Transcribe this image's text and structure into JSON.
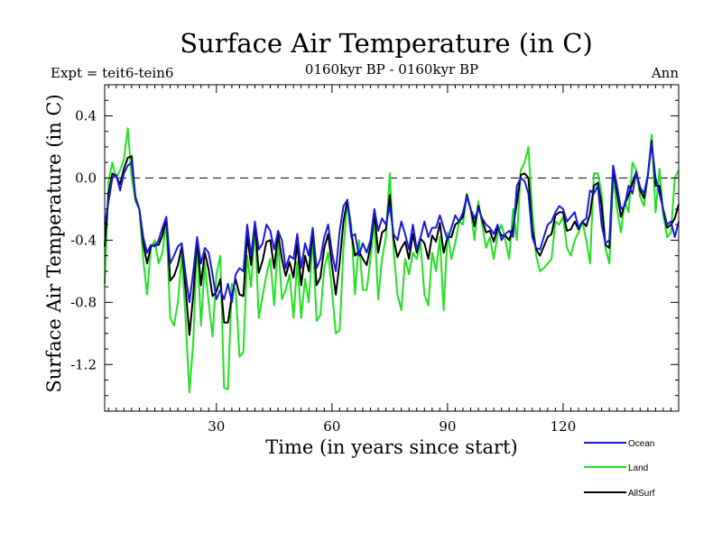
{
  "chart_data": {
    "type": "line",
    "title": "Surface Air Temperature (in C)",
    "subtitle": "0160kyr BP - 0160kyr BP",
    "expt_label": "Expt = teit6-tein6",
    "period_label": "Ann",
    "xlabel": "Time (in years since start)",
    "ylabel": "Surface Air Temperature (in C)",
    "xlim": [
      1,
      150
    ],
    "ylim": [
      -1.5,
      0.6
    ],
    "xticks": [
      30,
      60,
      90,
      120
    ],
    "xtick_labels": [
      "30",
      "60",
      "90",
      "120"
    ],
    "yticks": [
      0.4,
      0.0,
      -0.4,
      -0.8,
      -1.2
    ],
    "ytick_labels": [
      "0.4",
      "0.0",
      "-0.4",
      "-0.8",
      "-1.2"
    ],
    "reference_line": 0.0,
    "legend_position": "bottom-right",
    "series": [
      {
        "name": "Ocean",
        "color": "#1a1adc",
        "values": [
          -0.3,
          -0.15,
          0.0,
          0.02,
          -0.08,
          0.03,
          0.08,
          0.1,
          -0.12,
          -0.2,
          -0.38,
          -0.48,
          -0.43,
          -0.44,
          -0.4,
          -0.32,
          -0.25,
          -0.55,
          -0.5,
          -0.44,
          -0.42,
          -0.62,
          -0.8,
          -0.6,
          -0.38,
          -0.55,
          -0.45,
          -0.48,
          -0.62,
          -0.78,
          -0.72,
          -0.78,
          -0.68,
          -0.8,
          -0.62,
          -0.58,
          -0.6,
          -0.3,
          -0.5,
          -0.28,
          -0.46,
          -0.42,
          -0.3,
          -0.34,
          -0.46,
          -0.34,
          -0.4,
          -0.58,
          -0.5,
          -0.52,
          -0.36,
          -0.58,
          -0.42,
          -0.5,
          -0.32,
          -0.58,
          -0.52,
          -0.38,
          -0.3,
          -0.48,
          -0.6,
          -0.34,
          -0.18,
          -0.14,
          -0.38,
          -0.36,
          -0.5,
          -0.42,
          -0.48,
          -0.4,
          -0.2,
          -0.34,
          -0.26,
          -0.3,
          -0.18,
          -0.36,
          -0.4,
          -0.28,
          -0.36,
          -0.46,
          -0.3,
          -0.46,
          -0.38,
          -0.28,
          -0.38,
          -0.32,
          -0.32,
          -0.24,
          -0.32,
          -0.4,
          -0.32,
          -0.24,
          -0.28,
          -0.22,
          -0.12,
          -0.2,
          -0.26,
          -0.2,
          -0.26,
          -0.3,
          -0.32,
          -0.36,
          -0.3,
          -0.4,
          -0.36,
          -0.34,
          -0.38,
          -0.05,
          0.0,
          -0.02,
          -0.1,
          -0.38,
          -0.45,
          -0.46,
          -0.38,
          -0.3,
          -0.28,
          -0.22,
          -0.18,
          -0.2,
          -0.28,
          -0.25,
          -0.22,
          -0.32,
          -0.28,
          -0.26,
          -0.08,
          -0.1,
          -0.05,
          -0.3,
          -0.42,
          -0.4,
          0.08,
          -0.05,
          -0.2,
          -0.18,
          -0.05,
          -0.1,
          0.04,
          -0.06,
          -0.1,
          0.02,
          0.22,
          0.0,
          -0.1,
          -0.2,
          -0.3,
          -0.28,
          -0.38,
          -0.28
        ]
      },
      {
        "name": "Land",
        "color": "#22e022",
        "values": [
          -0.68,
          -0.02,
          0.1,
          0.0,
          0.05,
          0.12,
          0.32,
          0.0,
          -0.15,
          -0.2,
          -0.52,
          -0.75,
          -0.45,
          -0.4,
          -0.55,
          -0.48,
          -0.28,
          -0.9,
          -0.95,
          -0.8,
          -0.5,
          -0.9,
          -1.38,
          -1.05,
          -0.4,
          -0.95,
          -0.55,
          -0.8,
          -1.02,
          -0.62,
          -0.5,
          -1.35,
          -1.36,
          -0.68,
          -0.72,
          -1.15,
          -1.12,
          -0.5,
          -0.7,
          -0.3,
          -0.9,
          -0.76,
          -0.62,
          -0.52,
          -0.82,
          -0.4,
          -0.78,
          -0.72,
          -0.62,
          -0.9,
          -0.54,
          -0.9,
          -0.65,
          -0.8,
          -0.38,
          -0.92,
          -0.88,
          -0.58,
          -0.48,
          -0.72,
          -1.0,
          -0.98,
          -0.45,
          -0.15,
          -0.3,
          -0.75,
          -0.4,
          -0.72,
          -0.72,
          -0.52,
          -0.28,
          -0.78,
          -0.52,
          -0.38,
          0.03,
          -0.46,
          -0.75,
          -0.85,
          -0.52,
          -0.62,
          -0.48,
          -0.52,
          -0.42,
          -0.75,
          -0.82,
          -0.48,
          -0.6,
          -0.38,
          -0.85,
          -0.35,
          -0.52,
          -0.42,
          -0.28,
          -0.3,
          -0.1,
          -0.2,
          -0.4,
          -0.15,
          -0.3,
          -0.45,
          -0.38,
          -0.52,
          -0.36,
          -0.3,
          -0.4,
          -0.52,
          -0.2,
          -0.4,
          0.05,
          0.1,
          0.2,
          -0.22,
          -0.5,
          -0.6,
          -0.58,
          -0.55,
          -0.52,
          -0.28,
          -0.3,
          -0.25,
          -0.45,
          -0.5,
          -0.4,
          -0.35,
          -0.28,
          -0.4,
          -0.55,
          0.03,
          0.03,
          -0.1,
          -0.45,
          -0.55,
          0.0,
          -0.2,
          -0.35,
          -0.15,
          -0.22,
          0.1,
          0.05,
          -0.12,
          -0.18,
          0.02,
          0.28,
          -0.22,
          0.06,
          -0.24,
          -0.38,
          -0.35,
          0.0,
          0.05
        ]
      },
      {
        "name": "AllSurf",
        "color": "#000000",
        "values": [
          -0.44,
          -0.1,
          0.03,
          0.01,
          -0.04,
          0.06,
          0.13,
          0.14,
          -0.13,
          -0.2,
          -0.42,
          -0.55,
          -0.44,
          -0.43,
          -0.43,
          -0.37,
          -0.26,
          -0.66,
          -0.63,
          -0.56,
          -0.44,
          -0.71,
          -1.01,
          -0.75,
          -0.39,
          -0.69,
          -0.48,
          -0.59,
          -0.76,
          -0.73,
          -0.65,
          -0.93,
          -0.93,
          -0.76,
          -0.65,
          -0.75,
          -0.76,
          -0.37,
          -0.56,
          -0.29,
          -0.61,
          -0.53,
          -0.41,
          -0.4,
          -0.58,
          -0.36,
          -0.52,
          -0.63,
          -0.54,
          -0.64,
          -0.42,
          -0.69,
          -0.5,
          -0.6,
          -0.34,
          -0.69,
          -0.64,
          -0.45,
          -0.36,
          -0.56,
          -0.75,
          -0.54,
          -0.28,
          -0.14,
          -0.35,
          -0.5,
          -0.47,
          -0.52,
          -0.56,
          -0.44,
          -0.23,
          -0.48,
          -0.35,
          -0.33,
          -0.11,
          -0.39,
          -0.51,
          -0.45,
          -0.41,
          -0.52,
          -0.36,
          -0.48,
          -0.39,
          -0.42,
          -0.52,
          -0.37,
          -0.41,
          -0.29,
          -0.48,
          -0.38,
          -0.38,
          -0.3,
          -0.28,
          -0.25,
          -0.11,
          -0.2,
          -0.31,
          -0.18,
          -0.27,
          -0.35,
          -0.34,
          -0.41,
          -0.32,
          -0.37,
          -0.37,
          -0.4,
          -0.32,
          -0.16,
          0.02,
          0.03,
          0.0,
          -0.33,
          -0.46,
          -0.5,
          -0.44,
          -0.38,
          -0.36,
          -0.24,
          -0.22,
          -0.22,
          -0.34,
          -0.33,
          -0.28,
          -0.33,
          -0.28,
          -0.31,
          -0.23,
          -0.05,
          -0.03,
          -0.17,
          -0.43,
          -0.45,
          0.06,
          -0.1,
          -0.25,
          -0.17,
          -0.11,
          -0.03,
          0.04,
          -0.08,
          -0.13,
          0.02,
          0.24,
          -0.05,
          -0.05,
          -0.21,
          -0.32,
          -0.3,
          -0.26,
          -0.17
        ]
      }
    ]
  }
}
